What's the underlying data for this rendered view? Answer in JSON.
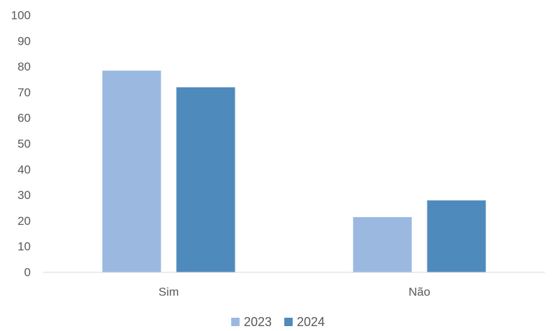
{
  "chart_data": {
    "type": "bar",
    "title": "",
    "xlabel": "",
    "ylabel": "",
    "categories": [
      "Sim",
      "Não"
    ],
    "series": [
      {
        "name": "2023",
        "values": [
          78.5,
          21.5
        ],
        "color": "#9bb9e0"
      },
      {
        "name": "2024",
        "values": [
          72,
          28
        ],
        "color": "#4f8abd"
      }
    ],
    "ylim": [
      0,
      100
    ],
    "yticks": [
      0,
      10,
      20,
      30,
      40,
      50,
      60,
      70,
      80,
      90,
      100
    ],
    "grid": false,
    "legend_position": "bottom"
  }
}
